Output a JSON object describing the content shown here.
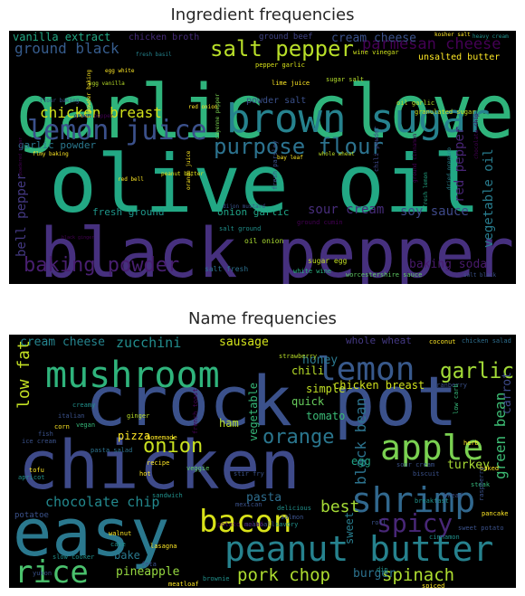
{
  "chart_data": [
    {
      "type": "wordcloud",
      "title": "Ingredient frequencies",
      "background": "#000000",
      "words": [
        {
          "text": "garlic clove",
          "weight": 100,
          "color": "#2fb47c"
        },
        {
          "text": "olive oil",
          "weight": 100,
          "color": "#22a884"
        },
        {
          "text": "black pepper",
          "weight": 95,
          "color": "#46307e"
        },
        {
          "text": "brown sugar",
          "weight": 55,
          "color": "#26828e"
        },
        {
          "text": "lemon juice",
          "weight": 38,
          "color": "#3b518b"
        },
        {
          "text": "purpose flour",
          "weight": 32,
          "color": "#2c728e"
        },
        {
          "text": "salt pepper",
          "weight": 28,
          "color": "#b8de29"
        },
        {
          "text": "baking powder",
          "weight": 26,
          "color": "#481f70"
        },
        {
          "text": "chicken breast",
          "weight": 22,
          "color": "#d2e21b"
        },
        {
          "text": "parmesan cheese",
          "weight": 20,
          "color": "#440154"
        },
        {
          "text": "ground black",
          "weight": 18,
          "color": "#365c8d"
        },
        {
          "text": "sour cream",
          "weight": 17,
          "color": "#472d7b"
        },
        {
          "text": "vegetable oil",
          "weight": 17,
          "color": "#287c8e"
        },
        {
          "text": "soy sauce",
          "weight": 16,
          "color": "#3e4989"
        },
        {
          "text": "bell pepper",
          "weight": 16,
          "color": "#443983"
        },
        {
          "text": "red pepper",
          "weight": 16,
          "color": "#482576"
        },
        {
          "text": "baking soda",
          "weight": 16,
          "color": "#481a6c"
        },
        {
          "text": "cream cheese",
          "weight": 15,
          "color": "#3b528b"
        },
        {
          "text": "vanilla extract",
          "weight": 14,
          "color": "#22a884"
        },
        {
          "text": "garlic powder",
          "weight": 12,
          "color": "#2a788e"
        },
        {
          "text": "fresh ground",
          "weight": 12,
          "color": "#1f968b"
        },
        {
          "text": "onion garlic",
          "weight": 12,
          "color": "#20a386"
        },
        {
          "text": "unsalted butter",
          "weight": 11,
          "color": "#fde725"
        },
        {
          "text": "powder salt",
          "weight": 11,
          "color": "#3b518b"
        },
        {
          "text": "chicken broth",
          "weight": 10,
          "color": "#472c7a"
        },
        {
          "text": "ground beef",
          "weight": 10,
          "color": "#414487"
        },
        {
          "text": "oil onion",
          "weight": 9,
          "color": "#aadc32"
        },
        {
          "text": "salt fresh",
          "weight": 9,
          "color": "#2d708e"
        },
        {
          "text": "sugar egg",
          "weight": 9,
          "color": "#c2df23"
        },
        {
          "text": "salt ground",
          "weight": 8,
          "color": "#21918c"
        },
        {
          "text": "white wine",
          "weight": 8,
          "color": "#29af7f"
        },
        {
          "text": "worcestershire sauce",
          "weight": 8,
          "color": "#5ec962"
        },
        {
          "text": "pepper garlic",
          "weight": 8,
          "color": "#d8e219"
        },
        {
          "text": "lime juice",
          "weight": 8,
          "color": "#fde725"
        },
        {
          "text": "sugar salt",
          "weight": 8,
          "color": "#b5de2b"
        },
        {
          "text": "wine vinegar",
          "weight": 8,
          "color": "#cde11d"
        },
        {
          "text": "oil garlic",
          "weight": 8,
          "color": "#b8de29"
        },
        {
          "text": "granulated sugar",
          "weight": 8,
          "color": "#c8e020"
        },
        {
          "text": "chili powder",
          "weight": 8,
          "color": "#3f4889"
        },
        {
          "text": "ground cumin",
          "weight": 8,
          "color": "#440154"
        },
        {
          "text": "fresh parsley",
          "weight": 8,
          "color": "#3b528b"
        },
        {
          "text": "kosher salt",
          "weight": 7,
          "color": "#fde725"
        },
        {
          "text": "heavy cream",
          "weight": 7,
          "color": "#21918c"
        },
        {
          "text": "egg white",
          "weight": 7,
          "color": "#fde725"
        },
        {
          "text": "egg vanilla",
          "weight": 7,
          "color": "#b8de29"
        },
        {
          "text": "flour baking",
          "weight": 7,
          "color": "#3b528b"
        },
        {
          "text": "flmy baking",
          "weight": 7,
          "color": "#fde725"
        },
        {
          "text": "fresh basil",
          "weight": 7,
          "color": "#25848e"
        },
        {
          "text": "green pepper",
          "weight": 7,
          "color": "#440154"
        },
        {
          "text": "powder baking",
          "weight": 7,
          "color": "#fde725"
        },
        {
          "text": "cayenne pepper",
          "weight": 7,
          "color": "#7ad151"
        },
        {
          "text": "red onion",
          "weight": 7,
          "color": "#fde725"
        },
        {
          "text": "bay leaf",
          "weight": 7,
          "color": "#fde725"
        },
        {
          "text": "whole wheat",
          "weight": 7,
          "color": "#bddf26"
        },
        {
          "text": "orange juice",
          "weight": 7,
          "color": "#fde725"
        },
        {
          "text": "dijon mustard",
          "weight": 7,
          "color": "#3b528b"
        },
        {
          "text": "peanut butter",
          "weight": 7,
          "color": "#e5e419"
        },
        {
          "text": "red bell",
          "weight": 7,
          "color": "#fde725"
        },
        {
          "text": "chocolate chip",
          "weight": 7,
          "color": "#440154"
        },
        {
          "text": "dried oregano",
          "weight": 7,
          "color": "#26828e"
        },
        {
          "text": "fresh lemon",
          "weight": 7,
          "color": "#22a884"
        },
        {
          "text": "ground cinnamon",
          "weight": 7,
          "color": "#440154"
        },
        {
          "text": "salt black",
          "weight": 7,
          "color": "#3b528b"
        },
        {
          "text": "black ginger",
          "weight": 6,
          "color": "#440154"
        },
        {
          "text": "powdered sugar",
          "weight": 6,
          "color": "#440154"
        }
      ]
    },
    {
      "type": "wordcloud",
      "title": "Name frequencies",
      "background": "#000000",
      "words": [
        {
          "text": "crock pot",
          "weight": 100,
          "color": "#3b518b"
        },
        {
          "text": "chicken",
          "weight": 95,
          "color": "#3e4a89"
        },
        {
          "text": "easy",
          "weight": 80,
          "color": "#2a788e"
        },
        {
          "text": "mushroom",
          "weight": 45,
          "color": "#2fb47c"
        },
        {
          "text": "peanut butter",
          "weight": 42,
          "color": "#26828e"
        },
        {
          "text": "shrimp",
          "weight": 40,
          "color": "#31688e"
        },
        {
          "text": "apple",
          "weight": 40,
          "color": "#7ad151"
        },
        {
          "text": "lemon",
          "weight": 38,
          "color": "#38598c"
        },
        {
          "text": "bacon",
          "weight": 37,
          "color": "#d8e219"
        },
        {
          "text": "rice",
          "weight": 36,
          "color": "#4ac16d"
        },
        {
          "text": "spicy",
          "weight": 30,
          "color": "#482777"
        },
        {
          "text": "garlic",
          "weight": 26,
          "color": "#a2da37"
        },
        {
          "text": "onion",
          "weight": 22,
          "color": "#c8e020"
        },
        {
          "text": "orange",
          "weight": 22,
          "color": "#2a768e"
        },
        {
          "text": "pork chop",
          "weight": 21,
          "color": "#addc30"
        },
        {
          "text": "spinach",
          "weight": 21,
          "color": "#addc30"
        },
        {
          "text": "low fat",
          "weight": 20,
          "color": "#c2df23"
        },
        {
          "text": "best",
          "weight": 20,
          "color": "#a5db36"
        },
        {
          "text": "black bean",
          "weight": 18,
          "color": "#2c738e"
        },
        {
          "text": "green bean",
          "weight": 18,
          "color": "#3dbc74"
        },
        {
          "text": "chocolate chip",
          "weight": 17,
          "color": "#23898e"
        },
        {
          "text": "zucchini",
          "weight": 16,
          "color": "#228d8d"
        },
        {
          "text": "pineapple",
          "weight": 14,
          "color": "#95d840"
        },
        {
          "text": "carrot",
          "weight": 14,
          "color": "#3e4a89"
        },
        {
          "text": "sausage",
          "weight": 14,
          "color": "#d2e21b"
        },
        {
          "text": "honey",
          "weight": 14,
          "color": "#2a788e"
        },
        {
          "text": "cream cheese",
          "weight": 14,
          "color": "#25848e"
        },
        {
          "text": "pasta",
          "weight": 14,
          "color": "#2e6d8e"
        },
        {
          "text": "burger",
          "weight": 14,
          "color": "#2c728e"
        },
        {
          "text": "turkey",
          "weight": 14,
          "color": "#a8db34"
        },
        {
          "text": "chicken breast",
          "weight": 13,
          "color": "#d0e11c"
        },
        {
          "text": "whole wheat",
          "weight": 12,
          "color": "#443983"
        },
        {
          "text": "quick",
          "weight": 13,
          "color": "#67cc5c"
        },
        {
          "text": "simple",
          "weight": 13,
          "color": "#c0df25"
        },
        {
          "text": "pizza",
          "weight": 13,
          "color": "#fde725"
        },
        {
          "text": "ham",
          "weight": 13,
          "color": "#b8de29"
        },
        {
          "text": "vegetable",
          "weight": 12,
          "color": "#35b779"
        },
        {
          "text": "tomato",
          "weight": 12,
          "color": "#3aba76"
        },
        {
          "text": "chili",
          "weight": 13,
          "color": "#b8de29"
        },
        {
          "text": "sweet",
          "weight": 12,
          "color": "#287d8e"
        },
        {
          "text": "egg",
          "weight": 12,
          "color": "#20a486"
        },
        {
          "text": "bake",
          "weight": 12,
          "color": "#2a788e"
        },
        {
          "text": "chicken salad",
          "weight": 8,
          "color": "#2e6e8e"
        },
        {
          "text": "coconut",
          "weight": 8,
          "color": "#fde725"
        },
        {
          "text": "strawberry",
          "weight": 7,
          "color": "#b8de29"
        },
        {
          "text": "cranberry",
          "weight": 7,
          "color": "#3b528b"
        },
        {
          "text": "creamy",
          "weight": 7,
          "color": "#21918c"
        },
        {
          "text": "italian",
          "weight": 7,
          "color": "#3b528b"
        },
        {
          "text": "corn",
          "weight": 7,
          "color": "#fde725"
        },
        {
          "text": "vegan",
          "weight": 7,
          "color": "#35b779"
        },
        {
          "text": "ginger",
          "weight": 7,
          "color": "#b8de29"
        },
        {
          "text": "apricot",
          "weight": 7,
          "color": "#21918c"
        },
        {
          "text": "ice cream",
          "weight": 7,
          "color": "#3b528b"
        },
        {
          "text": "pasta salad",
          "weight": 7,
          "color": "#2c728e"
        },
        {
          "text": "recipe",
          "weight": 7,
          "color": "#fde725"
        },
        {
          "text": "tofu",
          "weight": 7,
          "color": "#fde725"
        },
        {
          "text": "potatoe",
          "weight": 8,
          "color": "#3b528b"
        },
        {
          "text": "hot",
          "weight": 7,
          "color": "#fde725"
        },
        {
          "text": "veggie",
          "weight": 7,
          "color": "#5ec962"
        },
        {
          "text": "stir fry",
          "weight": 7,
          "color": "#3b528b"
        },
        {
          "text": "mexican",
          "weight": 7,
          "color": "#3b528b"
        },
        {
          "text": "delicious",
          "weight": 7,
          "color": "#21918c"
        },
        {
          "text": "salmon",
          "weight": 7,
          "color": "#3b528b"
        },
        {
          "text": "sandwich",
          "weight": 7,
          "color": "#21918c"
        },
        {
          "text": "walnut",
          "weight": 7,
          "color": "#fde725"
        },
        {
          "text": "cake",
          "weight": 7,
          "color": "#21918c"
        },
        {
          "text": "feta",
          "weight": 7,
          "color": "#3b528b"
        },
        {
          "text": "lasagna",
          "weight": 7,
          "color": "#fde725"
        },
        {
          "text": "brownie",
          "weight": 7,
          "color": "#21918c"
        },
        {
          "text": "meatloaf",
          "weight": 7,
          "color": "#fde725"
        },
        {
          "text": "meatball",
          "weight": 7,
          "color": "#3b528b"
        },
        {
          "text": "savory",
          "weight": 7,
          "color": "#21918c"
        },
        {
          "text": "potato salad",
          "weight": 7,
          "color": "#440154"
        },
        {
          "text": "slow cooker",
          "weight": 7,
          "color": "#21918c"
        },
        {
          "text": "fish",
          "weight": 7,
          "color": "#3b528b"
        },
        {
          "text": "french toast",
          "weight": 7,
          "color": "#440154"
        },
        {
          "text": "herb",
          "weight": 7,
          "color": "#fde725"
        },
        {
          "text": "low carb",
          "weight": 7,
          "color": "#35b779"
        },
        {
          "text": "sour cream",
          "weight": 7,
          "color": "#3b528b"
        },
        {
          "text": "biscuit",
          "weight": 7,
          "color": "#3b528b"
        },
        {
          "text": "baked",
          "weight": 7,
          "color": "#fde725"
        },
        {
          "text": "steak",
          "weight": 7,
          "color": "#35b779"
        },
        {
          "text": "bread",
          "weight": 7,
          "color": "#3b528b"
        },
        {
          "text": "breakfast",
          "weight": 7,
          "color": "#21918c"
        },
        {
          "text": "pancake",
          "weight": 7,
          "color": "#fde725"
        },
        {
          "text": "sweet potato",
          "weight": 7,
          "color": "#3b528b"
        },
        {
          "text": "cinnamon",
          "weight": 7,
          "color": "#21918c"
        },
        {
          "text": "roll",
          "weight": 7,
          "color": "#3b528b"
        },
        {
          "text": "dip",
          "weight": 7,
          "color": "#21918c"
        },
        {
          "text": "spiced",
          "weight": 7,
          "color": "#fde725"
        },
        {
          "text": "homemade",
          "weight": 7,
          "color": "#fde725"
        },
        {
          "text": "raspberry",
          "weight": 7,
          "color": "#3b528b"
        },
        {
          "text": "yukon",
          "weight": 7,
          "color": "#3b528b"
        }
      ]
    }
  ]
}
